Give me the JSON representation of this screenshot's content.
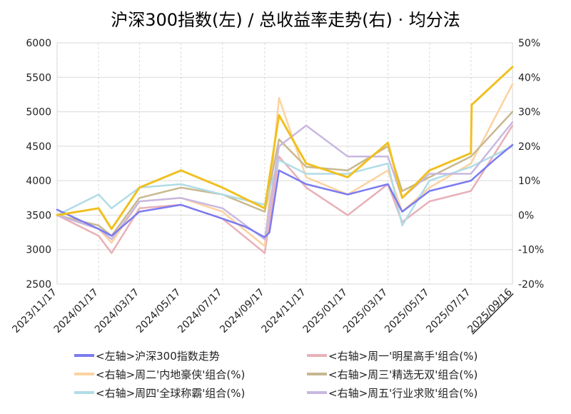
{
  "chart_data": {
    "type": "line",
    "title": "沪深300指数(左) / 总收益率走势(右) · 均分法",
    "x_ticks": [
      "2023/11/17",
      "2024/01/17",
      "2024/03/17",
      "2024/05/17",
      "2024/07/17",
      "2024/09/17",
      "2024/11/17",
      "2025/01/17",
      "2025/03/17",
      "2025/05/17",
      "2025/07/17",
      "2025/09/16"
    ],
    "x_last_tick_color": "#ff0000",
    "y_left": {
      "ticks": [
        2500,
        3000,
        3500,
        4000,
        4500,
        5000,
        5500,
        6000
      ],
      "range": [
        2500,
        6000
      ]
    },
    "y_right": {
      "ticks": [
        "50%",
        "40%",
        "30%",
        "20%",
        "10%",
        "0%",
        "-10%",
        "-20%"
      ],
      "tick_values": [
        50,
        40,
        30,
        20,
        10,
        0,
        -10,
        -20
      ],
      "negative_color": "#00cc00",
      "range": [
        -20,
        50
      ]
    },
    "grid": true,
    "legend_position": "bottom",
    "series": [
      {
        "name": "<左轴>沪深300指数走势",
        "axis": "left",
        "color": "#7b7bf0",
        "x": [
          "2023/11/17",
          "2024/01/17",
          "2024/02/05",
          "2024/03/17",
          "2024/05/17",
          "2024/07/17",
          "2024/08/20",
          "2024/09/17",
          "2024/09/24",
          "2024/10/08",
          "2024/11/17",
          "2025/01/17",
          "2025/03/17",
          "2025/04/07",
          "2025/05/17",
          "2025/07/17",
          "2025/08/20",
          "2025/09/16"
        ],
        "values": [
          3580,
          3300,
          3200,
          3550,
          3650,
          3450,
          3330,
          3180,
          3250,
          4150,
          3950,
          3800,
          3950,
          3550,
          3850,
          4000,
          4300,
          4520
        ]
      },
      {
        "name": "<右轴>周一'明星高手'组合(%)",
        "axis": "right",
        "color": "#e8b0b8",
        "x": [
          "2023/11/17",
          "2024/01/17",
          "2024/02/05",
          "2024/03/17",
          "2024/05/17",
          "2024/07/17",
          "2024/09/17",
          "2024/10/08",
          "2024/11/17",
          "2025/01/17",
          "2025/03/17",
          "2025/04/07",
          "2025/05/17",
          "2025/07/17",
          "2025/09/16"
        ],
        "values": [
          0,
          -6,
          -11,
          2,
          3,
          -1,
          -11,
          17,
          8,
          0,
          9,
          -2,
          4,
          7,
          26
        ]
      },
      {
        "name": "<右轴>周二'内地豪侠'组合(%)",
        "axis": "right",
        "color": "#fcd2a0",
        "x": [
          "2023/11/17",
          "2024/01/17",
          "2024/02/05",
          "2024/03/17",
          "2024/05/17",
          "2024/07/17",
          "2024/09/17",
          "2024/10/08",
          "2024/11/17",
          "2025/01/17",
          "2025/03/17",
          "2025/04/07",
          "2025/05/17",
          "2025/07/17",
          "2025/09/16"
        ],
        "values": [
          0,
          -4,
          -8,
          4,
          5,
          1,
          -9,
          34,
          11,
          6,
          13,
          1,
          8,
          15,
          38
        ]
      },
      {
        "name": "<右轴>周三'精选无双'组合(%)",
        "axis": "right",
        "color": "#c8b890",
        "x": [
          "2023/11/17",
          "2024/01/17",
          "2024/02/05",
          "2024/03/17",
          "2024/05/17",
          "2024/07/17",
          "2024/09/17",
          "2024/10/08",
          "2024/11/17",
          "2025/01/17",
          "2025/03/17",
          "2025/04/07",
          "2025/05/17",
          "2025/07/17",
          "2025/09/16"
        ],
        "values": [
          0,
          -3,
          -6,
          5,
          8,
          6,
          1,
          22,
          14,
          13,
          20,
          7,
          11,
          17,
          30
        ]
      },
      {
        "name": "<右轴>周四'全球称霸'组合(%)",
        "axis": "right",
        "color": "#b0dce6",
        "x": [
          "2023/11/17",
          "2024/01/17",
          "2024/02/05",
          "2024/03/17",
          "2024/05/17",
          "2024/07/17",
          "2024/09/17",
          "2024/10/08",
          "2024/11/17",
          "2025/01/17",
          "2025/03/17",
          "2025/04/07",
          "2025/05/17",
          "2025/07/17",
          "2025/09/16"
        ],
        "values": [
          0,
          6,
          2,
          8,
          9,
          6,
          3,
          16,
          12,
          12,
          15,
          -3,
          10,
          14,
          20
        ]
      },
      {
        "name": "<右轴>周五'行业求败'组合(%)",
        "axis": "right",
        "color": "#c8b8e0",
        "x": [
          "2023/11/17",
          "2024/01/17",
          "2024/02/05",
          "2024/03/17",
          "2024/05/17",
          "2024/07/17",
          "2024/09/17",
          "2024/10/08",
          "2024/11/17",
          "2025/01/17",
          "2025/03/17",
          "2025/04/07",
          "2025/05/17",
          "2025/07/17",
          "2025/09/16"
        ],
        "values": [
          0,
          -4,
          -7,
          4,
          5,
          2,
          -7,
          20,
          26,
          17,
          17,
          5,
          12,
          12,
          27
        ]
      },
      {
        "name": "",
        "axis": "right",
        "color": "#f0c020",
        "x": [
          "2023/11/17",
          "2024/01/17",
          "2024/02/05",
          "2024/03/17",
          "2024/05/17",
          "2024/07/17",
          "2024/09/17",
          "2024/10/08",
          "2024/11/17",
          "2025/01/17",
          "2025/03/17",
          "2025/04/07",
          "2025/05/17",
          "2025/07/17",
          "2025/07/18",
          "2025/09/16"
        ],
        "values": [
          0,
          2,
          -4,
          8,
          13,
          8,
          2,
          29,
          15,
          11,
          21,
          5,
          13,
          18,
          32,
          43
        ]
      }
    ]
  }
}
